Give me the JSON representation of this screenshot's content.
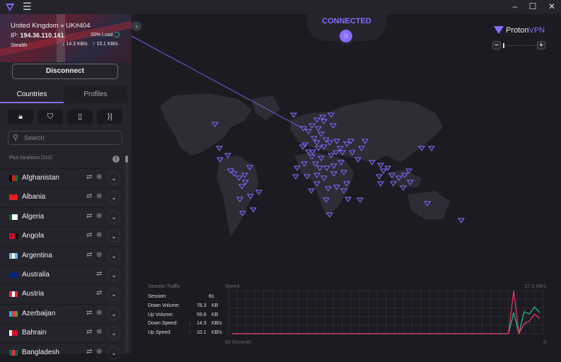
{
  "window": {
    "controls": [
      "–",
      "☐",
      "✕"
    ]
  },
  "connection": {
    "server": "United Kingdom » UK#404",
    "ip_label": "IP:",
    "ip": "194.36.110.141",
    "load": "33% Load",
    "load_fraction": 0.33,
    "protocol": "Stealth",
    "down": "14.3 KB/s",
    "up": "10.1 KB/s",
    "disconnect": "Disconnect",
    "status": "CONNECTED"
  },
  "tabs": [
    "Countries",
    "Profiles"
  ],
  "filters": [
    "secure-core",
    "netshield",
    "p2p",
    "tor"
  ],
  "search": {
    "placeholder": "Search"
  },
  "list_header": "Plus locations (112)",
  "countries": [
    {
      "name": "Afghanistan",
      "flag": [
        "#000",
        "#d32011",
        "#007a36"
      ],
      "p2p": true,
      "tor": true
    },
    {
      "name": "Albania",
      "flag": [
        "#e41e20",
        "#e41e20",
        "#e41e20"
      ],
      "p2p": true,
      "tor": true
    },
    {
      "name": "Algeria",
      "flag": [
        "#006233",
        "#fff",
        "#fff"
      ],
      "p2p": true,
      "tor": true
    },
    {
      "name": "Angola",
      "flag": [
        "#cc092f",
        "#cc092f",
        "#000"
      ],
      "p2p": true,
      "tor": true
    },
    {
      "name": "Argentina",
      "flag": [
        "#74acdf",
        "#fff",
        "#74acdf"
      ],
      "p2p": true,
      "tor": true
    },
    {
      "name": "Australia",
      "flag": [
        "#00247d",
        "#00247d",
        "#00247d"
      ],
      "p2p": true,
      "tor": false
    },
    {
      "name": "Austria",
      "flag": [
        "#ed2939",
        "#fff",
        "#ed2939"
      ],
      "p2p": true,
      "tor": false
    },
    {
      "name": "Azerbaijan",
      "flag": [
        "#00b5e2",
        "#ef3340",
        "#509e2f"
      ],
      "p2p": true,
      "tor": true
    },
    {
      "name": "Bahrain",
      "flag": [
        "#fff",
        "#ce1126",
        "#ce1126"
      ],
      "p2p": true,
      "tor": true
    },
    {
      "name": "Bangladesh",
      "flag": [
        "#006a4e",
        "#f42a41",
        "#006a4e"
      ],
      "p2p": true,
      "tor": true
    }
  ],
  "brand": {
    "name1": "Proton",
    "name2": "VPN"
  },
  "map_zoom": {
    "minus": "−",
    "plus": "+"
  },
  "traffic": {
    "title": "Session Traffic",
    "rows": [
      {
        "label": "Session:",
        "value": "6s",
        "unit": ""
      },
      {
        "label": "Down Volume:",
        "value": "78.3",
        "unit": "KB"
      },
      {
        "label": "Up Volume:",
        "value": "59.6",
        "unit": "KB"
      },
      {
        "label": "Down Speed:",
        "value": "14.3",
        "unit": "KB/s",
        "arrow": "↓"
      },
      {
        "label": "Up Speed:",
        "value": "10.1",
        "unit": "KB/s",
        "arrow": "↑"
      }
    ]
  },
  "chart_data": {
    "type": "line",
    "title": "Speed",
    "ymax_label": "27.5 KB/s",
    "ylim": [
      0,
      27.5
    ],
    "x_start_label": "60 Seconds",
    "x_end_label": "0",
    "grid": true,
    "colors": {
      "down": "#2bb38b",
      "up": "#e3345a"
    },
    "series": [
      {
        "key": "down",
        "values": [
          0,
          0,
          0,
          0,
          0,
          0,
          0,
          0,
          0,
          0,
          0,
          0,
          0,
          0,
          0,
          0,
          0,
          0,
          0,
          0,
          0,
          0,
          0,
          0,
          0,
          0,
          0,
          0,
          0,
          0,
          0,
          0,
          0,
          0,
          0,
          0,
          0,
          0,
          0,
          0,
          0,
          0,
          0,
          0,
          0,
          0,
          0,
          0,
          0,
          0,
          0,
          0,
          0,
          0,
          13.5,
          0,
          14,
          12.6,
          17,
          13.5
        ]
      },
      {
        "key": "up",
        "values": [
          0,
          0,
          0,
          0,
          0,
          0,
          0,
          0,
          0,
          0,
          0,
          0,
          0,
          0,
          0,
          0,
          0,
          0,
          0,
          0,
          0,
          0,
          0,
          0,
          0,
          0,
          0,
          0,
          0,
          0,
          0,
          0,
          0,
          0,
          0,
          0,
          0,
          0,
          0,
          0,
          0,
          0,
          0,
          0,
          0,
          0,
          0,
          0,
          0,
          0,
          0,
          0,
          0,
          0,
          27.5,
          0,
          6.3,
          8,
          12.6,
          9.5
        ]
      }
    ]
  }
}
